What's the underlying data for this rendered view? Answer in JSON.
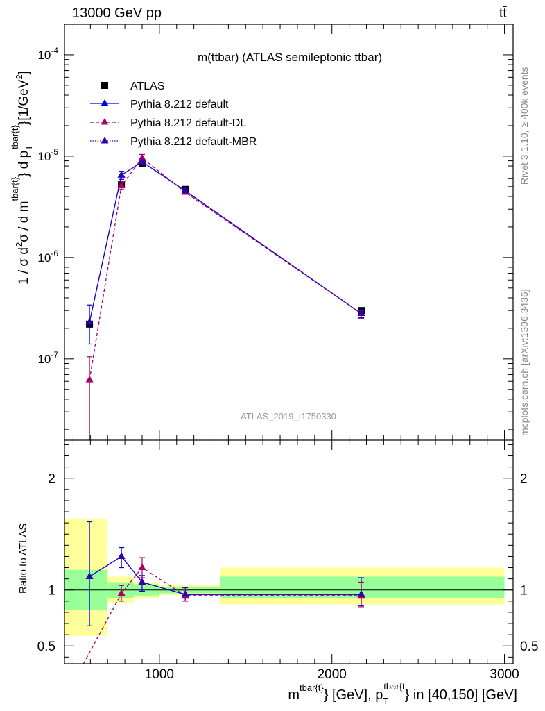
{
  "header": {
    "left": "13000 GeV pp",
    "right": "tt̄"
  },
  "side_labels": {
    "rivet": "Rivet 3.1.10, ≥ 400k events",
    "mcplots": "mcplots.cern.ch [arXiv:1306.3436]"
  },
  "colors": {
    "atlas": "#000000",
    "default": "#0000dd",
    "dl": "#aa0066",
    "mbr": "#3300aa",
    "band_inner": "#99ff99",
    "band_outer": "#ffff99"
  },
  "chart_data": [
    {
      "type": "line",
      "name": "main",
      "title": "m(ttbar) (ATLAS semileptonic ttbar)",
      "ylabel": "1 / σ d²σ / d m^{tbar{t}} d p_T^{tbar{t}}[1/GeV²]",
      "yscale": "log",
      "ylim": [
        1.6e-08,
        0.0002
      ],
      "xlim": [
        450,
        3050
      ],
      "yticks": [
        1e-07,
        1e-06,
        1e-05,
        0.0001
      ],
      "ytick_labels": [
        "10^-7",
        "10^-6",
        "10^-5",
        "10^-4"
      ],
      "watermark": "ATLAS_2019_I1750330",
      "legend": [
        "ATLAS",
        "Pythia 8.212 default",
        "Pythia 8.212 default-DL",
        "Pythia 8.212 default-MBR"
      ],
      "bins": [
        [
          450,
          700
        ],
        [
          700,
          850
        ],
        [
          850,
          1000
        ],
        [
          1000,
          1350
        ],
        [
          1350,
          3000
        ]
      ],
      "series": [
        {
          "name": "ATLAS",
          "style": "square",
          "x": [
            595,
            780,
            900,
            1150,
            2170
          ],
          "y": [
            2.2e-07,
            5.3e-06,
            8.5e-06,
            4.7e-06,
            3e-07
          ]
        },
        {
          "name": "Pythia 8.212 default",
          "style": "solid",
          "x": [
            595,
            780,
            900,
            1150,
            2170
          ],
          "y": [
            2.3e-07,
            6.5e-06,
            8.8e-06,
            4.55e-06,
            2.8e-07
          ],
          "err_lo": [
            1.4e-07,
            5.9e-06,
            8.3e-06,
            4.3e-06,
            2.55e-07
          ],
          "err_hi": [
            3.4e-07,
            7.1e-06,
            9.3e-06,
            4.8e-06,
            3.05e-07
          ]
        },
        {
          "name": "Pythia 8.212 default-DL",
          "style": "dashed",
          "x": [
            595,
            780,
            900,
            1150,
            2170
          ],
          "y": [
            6.2e-08,
            5.1e-06,
            9.6e-06,
            4.4e-06,
            2.8e-07
          ],
          "err_lo": [
            1.6e-08,
            4.7e-06,
            8.9e-06,
            4.2e-06,
            2.5e-07
          ],
          "err_hi": [
            1.05e-07,
            5.6e-06,
            1.04e-05,
            4.65e-06,
            3e-07
          ]
        },
        {
          "name": "Pythia 8.212 default-MBR",
          "style": "dotted",
          "x": [
            595,
            780,
            900,
            1150,
            2170
          ],
          "y": [
            2.3e-07,
            6.5e-06,
            8.8e-06,
            4.55e-06,
            2.8e-07
          ]
        }
      ]
    },
    {
      "type": "line",
      "name": "ratio",
      "xlabel": "m^{tbar{t}} [GeV], p_T^{tbar{t}} in [40,150] [GeV]",
      "ylabel": "Ratio to ATLAS",
      "ylim": [
        0.34,
        2.34
      ],
      "xlim": [
        450,
        3050
      ],
      "yticks": [
        0.5,
        1,
        2
      ],
      "ytick_labels": [
        "0.5",
        "1",
        "2"
      ],
      "xticks": [
        1000,
        2000,
        3000
      ],
      "xtick_labels": [
        "1000",
        "2000",
        "3000"
      ],
      "bands": [
        {
          "x": [
            450,
            700
          ],
          "inner": [
            0.82,
            1.18
          ],
          "outer": [
            0.59,
            1.64
          ]
        },
        {
          "x": [
            700,
            850
          ],
          "inner": [
            0.93,
            1.07
          ],
          "outer": [
            0.88,
            1.12
          ]
        },
        {
          "x": [
            850,
            1000
          ],
          "inner": [
            0.95,
            1.05
          ],
          "outer": [
            0.93,
            1.07
          ]
        },
        {
          "x": [
            1000,
            1350
          ],
          "inner": [
            0.97,
            1.03
          ],
          "outer": [
            0.955,
            1.045
          ]
        },
        {
          "x": [
            1350,
            3000
          ],
          "inner": [
            0.93,
            1.12
          ],
          "outer": [
            0.87,
            1.2
          ]
        }
      ],
      "series": [
        {
          "name": "Pythia 8.212 default",
          "style": "solid",
          "x": [
            595,
            780,
            900,
            1150,
            2170
          ],
          "y": [
            1.12,
            1.3,
            1.07,
            0.96,
            0.96
          ],
          "err_lo": [
            0.68,
            1.2,
            0.99,
            0.9,
            0.86
          ],
          "err_hi": [
            1.61,
            1.38,
            1.13,
            1.02,
            1.11
          ]
        },
        {
          "name": "Pythia 8.212 default-DL",
          "style": "dashed",
          "x": [
            560,
            780,
            900,
            1150,
            2170
          ],
          "y": [
            0.34,
            0.97,
            1.2,
            0.95,
            0.95
          ],
          "mx": [
            780,
            900,
            1150,
            2170
          ],
          "my": [
            0.97,
            1.2,
            0.95,
            0.95
          ],
          "err_lo": [
            0.9,
            1.11,
            0.9,
            0.85
          ],
          "err_hi": [
            1.04,
            1.29,
            1.0,
            1.07
          ]
        },
        {
          "name": "Pythia 8.212 default-MBR",
          "style": "dotted",
          "x": [
            595,
            780,
            900,
            1150,
            2170
          ],
          "y": [
            1.12,
            1.3,
            1.07,
            0.96,
            0.96
          ]
        }
      ]
    }
  ]
}
